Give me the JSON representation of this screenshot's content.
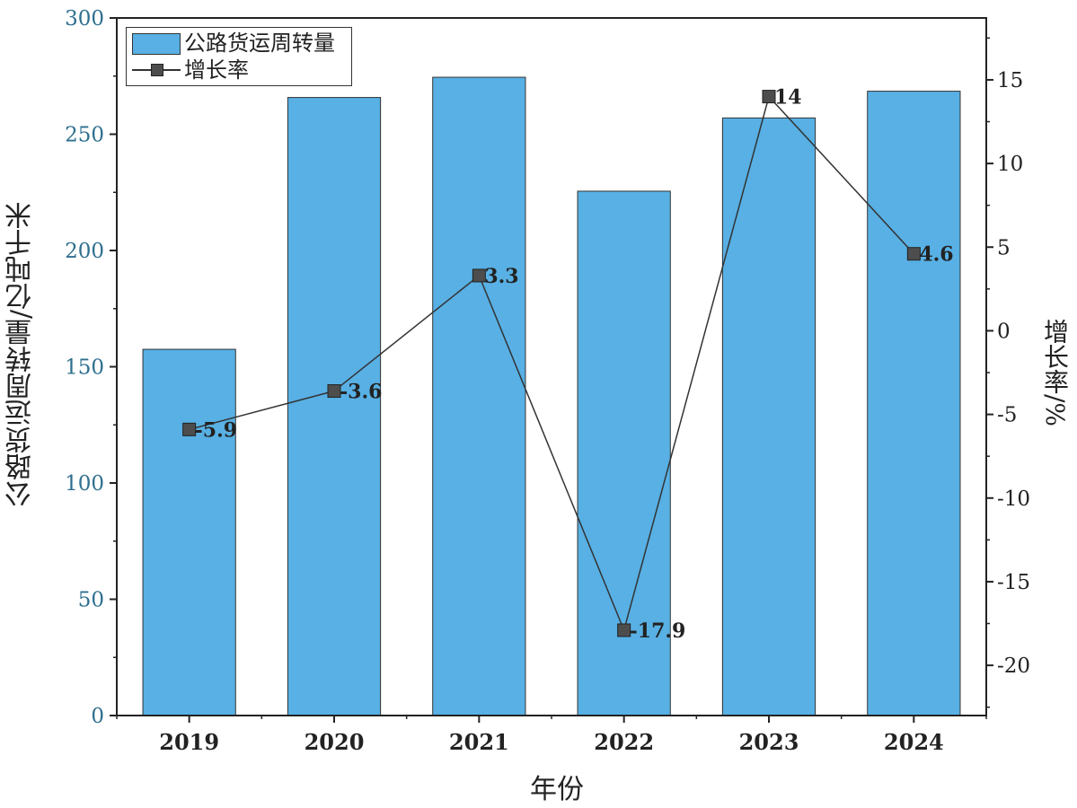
{
  "chart_data": {
    "type": "bar",
    "xlabel": "年份",
    "ylabel": "公路货运周转量/亿吨千米",
    "y2label": "增长率/%",
    "categories": [
      "2019",
      "2020",
      "2021",
      "2022",
      "2023",
      "2024"
    ],
    "ylim": [
      0,
      300
    ],
    "y2lim": [
      -23,
      18.7
    ],
    "yticks": [
      "0",
      "50",
      "100",
      "150",
      "200",
      "250",
      "300"
    ],
    "y2ticks": [
      "-20",
      "-15",
      "-10",
      "-5",
      "0",
      "5",
      "10",
      "15"
    ],
    "series": [
      {
        "name": "公路货运周转量",
        "type": "bar",
        "axis": "left",
        "values": [
          157.5,
          265.8,
          274.5,
          225.5,
          257.0,
          268.5
        ]
      },
      {
        "name": "增长率",
        "type": "line",
        "axis": "right",
        "values": [
          -5.9,
          -3.6,
          3.3,
          -17.9,
          14,
          4.6
        ],
        "labels": [
          "-5.9",
          "-3.6",
          "3.3",
          "-17.9",
          "14",
          "4.6"
        ]
      }
    ],
    "legend_position": "top-left",
    "grid": false,
    "colors": {
      "bar": "#58b0e4",
      "line": "#333333",
      "marker": "#4d4d4d",
      "left_ticks": "#2f6f8f"
    }
  }
}
